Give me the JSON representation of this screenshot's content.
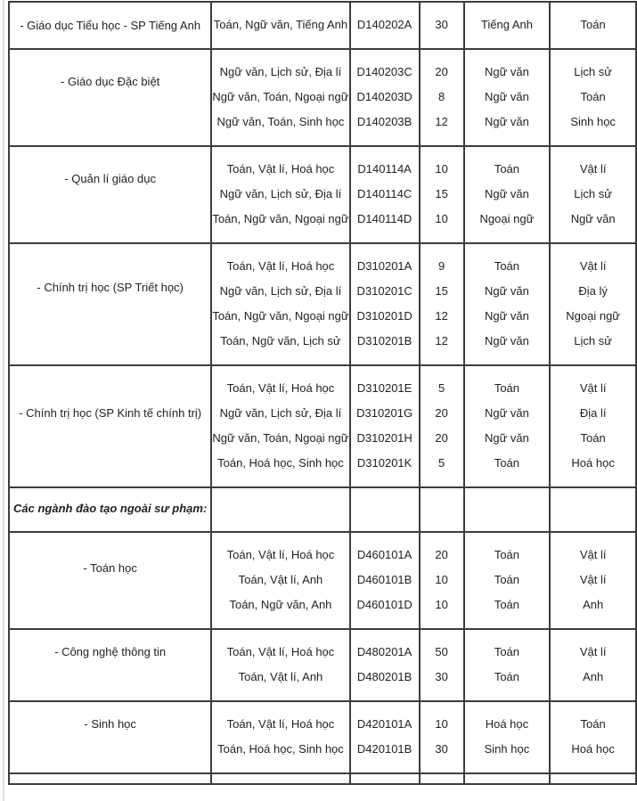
{
  "groups": [
    {
      "name": "- Giáo dục Tiểu học - SP Tiếng Anh",
      "rows": [
        {
          "subjects": "Toán, Ngữ văn, Tiếng Anh",
          "code": "D140202A",
          "quota": "30",
          "main": "Tiếng Anh",
          "second": "Toán"
        }
      ]
    },
    {
      "name": "- Giáo dục Đặc biệt",
      "rows": [
        {
          "subjects": "Ngữ văn, Lịch sử, Địa lí",
          "code": "D140203C",
          "quota": "20",
          "main": "Ngữ văn",
          "second": "Lịch sử"
        },
        {
          "subjects": "Ngữ văn, Toán, Ngoại ngữ",
          "code": "D140203D",
          "quota": "8",
          "main": "Ngữ văn",
          "second": "Toán"
        },
        {
          "subjects": "Ngữ văn, Toán, Sinh học",
          "code": "D140203B",
          "quota": "12",
          "main": "Ngữ văn",
          "second": "Sinh học"
        }
      ]
    },
    {
      "name": "- Quản lí giáo dục",
      "rows": [
        {
          "subjects": "Toán, Vật lí, Hoá học",
          "code": "D140114A",
          "quota": "10",
          "main": "Toán",
          "second": "Vật lí"
        },
        {
          "subjects": "Ngữ văn, Lịch sử, Địa lí",
          "code": "D140114C",
          "quota": "15",
          "main": "Ngữ văn",
          "second": "Lịch sử"
        },
        {
          "subjects": "Toán, Ngữ văn, Ngoại ngữ",
          "code": "D140114D",
          "quota": "10",
          "main": "Ngoại ngữ",
          "second": "Ngữ văn"
        }
      ]
    },
    {
      "name": "- Chính trị học (SP Triết học)",
      "rows": [
        {
          "subjects": "Toán, Vật lí, Hoá học",
          "code": "D310201A",
          "quota": "9",
          "main": "Toán",
          "second": "Vật lí"
        },
        {
          "subjects": "Ngữ văn, Lịch sử, Địa lí",
          "code": "D310201C",
          "quota": "15",
          "main": "Ngữ văn",
          "second": "Địa lý"
        },
        {
          "subjects": "Toán, Ngữ văn, Ngoại ngữ",
          "code": "D310201D",
          "quota": "12",
          "main": "Ngữ văn",
          "second": "Ngoại ngữ"
        },
        {
          "subjects": "Toán, Ngữ văn, Lịch sử",
          "code": "D310201B",
          "quota": "12",
          "main": "Ngữ văn",
          "second": "Lịch sử"
        }
      ]
    },
    {
      "name": "- Chính trị học (SP Kinh tế chính trị)",
      "rows": [
        {
          "subjects": "Toán, Vật lí, Hoá học",
          "code": "D310201E",
          "quota": "5",
          "main": "Toán",
          "second": "Vật lí"
        },
        {
          "subjects": "Ngữ văn, Lịch sử, Địa lí",
          "code": "D310201G",
          "quota": "20",
          "main": "Ngữ văn",
          "second": "Địa lí"
        },
        {
          "subjects": "Ngữ văn, Toán, Ngoại ngữ",
          "code": "D310201H",
          "quota": "20",
          "main": "Ngữ văn",
          "second": "Toán"
        },
        {
          "subjects": "Toán, Hoá học, Sinh học",
          "code": "D310201K",
          "quota": "5",
          "main": "Toán",
          "second": "Hoá học"
        }
      ]
    },
    {
      "section": "Các ngành đào tạo ngoài sư phạm:"
    },
    {
      "name": "- Toán học",
      "rows": [
        {
          "subjects": "Toán, Vật lí, Hoá học",
          "code": "D460101A",
          "quota": "20",
          "main": "Toán",
          "second": "Vật lí"
        },
        {
          "subjects": "Toán, Vật lí, Anh",
          "code": "D460101B",
          "quota": "10",
          "main": "Toán",
          "second": "Vật lí"
        },
        {
          "subjects": "Toán, Ngữ văn, Anh",
          "code": "D460101D",
          "quota": "10",
          "main": "Toán",
          "second": "Anh"
        }
      ]
    },
    {
      "name": "- Công nghệ thông tin",
      "rows": [
        {
          "subjects": "Toán, Vật lí, Hoá học",
          "code": "D480201A",
          "quota": "50",
          "main": "Toán",
          "second": "Vật lí"
        },
        {
          "subjects": "Toán, Vật lí, Anh",
          "code": "D480201B",
          "quota": "30",
          "main": "Toán",
          "second": "Anh"
        }
      ]
    },
    {
      "name": "- Sinh học",
      "rows": [
        {
          "subjects": "Toán, Vật lí, Hoá học",
          "code": "D420101A",
          "quota": "10",
          "main": "Hoá học",
          "second": "Toán"
        },
        {
          "subjects": "Toán, Hoá học, Sinh học",
          "code": "D420101B",
          "quota": "30",
          "main": "Sinh học",
          "second": "Hoá học"
        }
      ]
    }
  ]
}
